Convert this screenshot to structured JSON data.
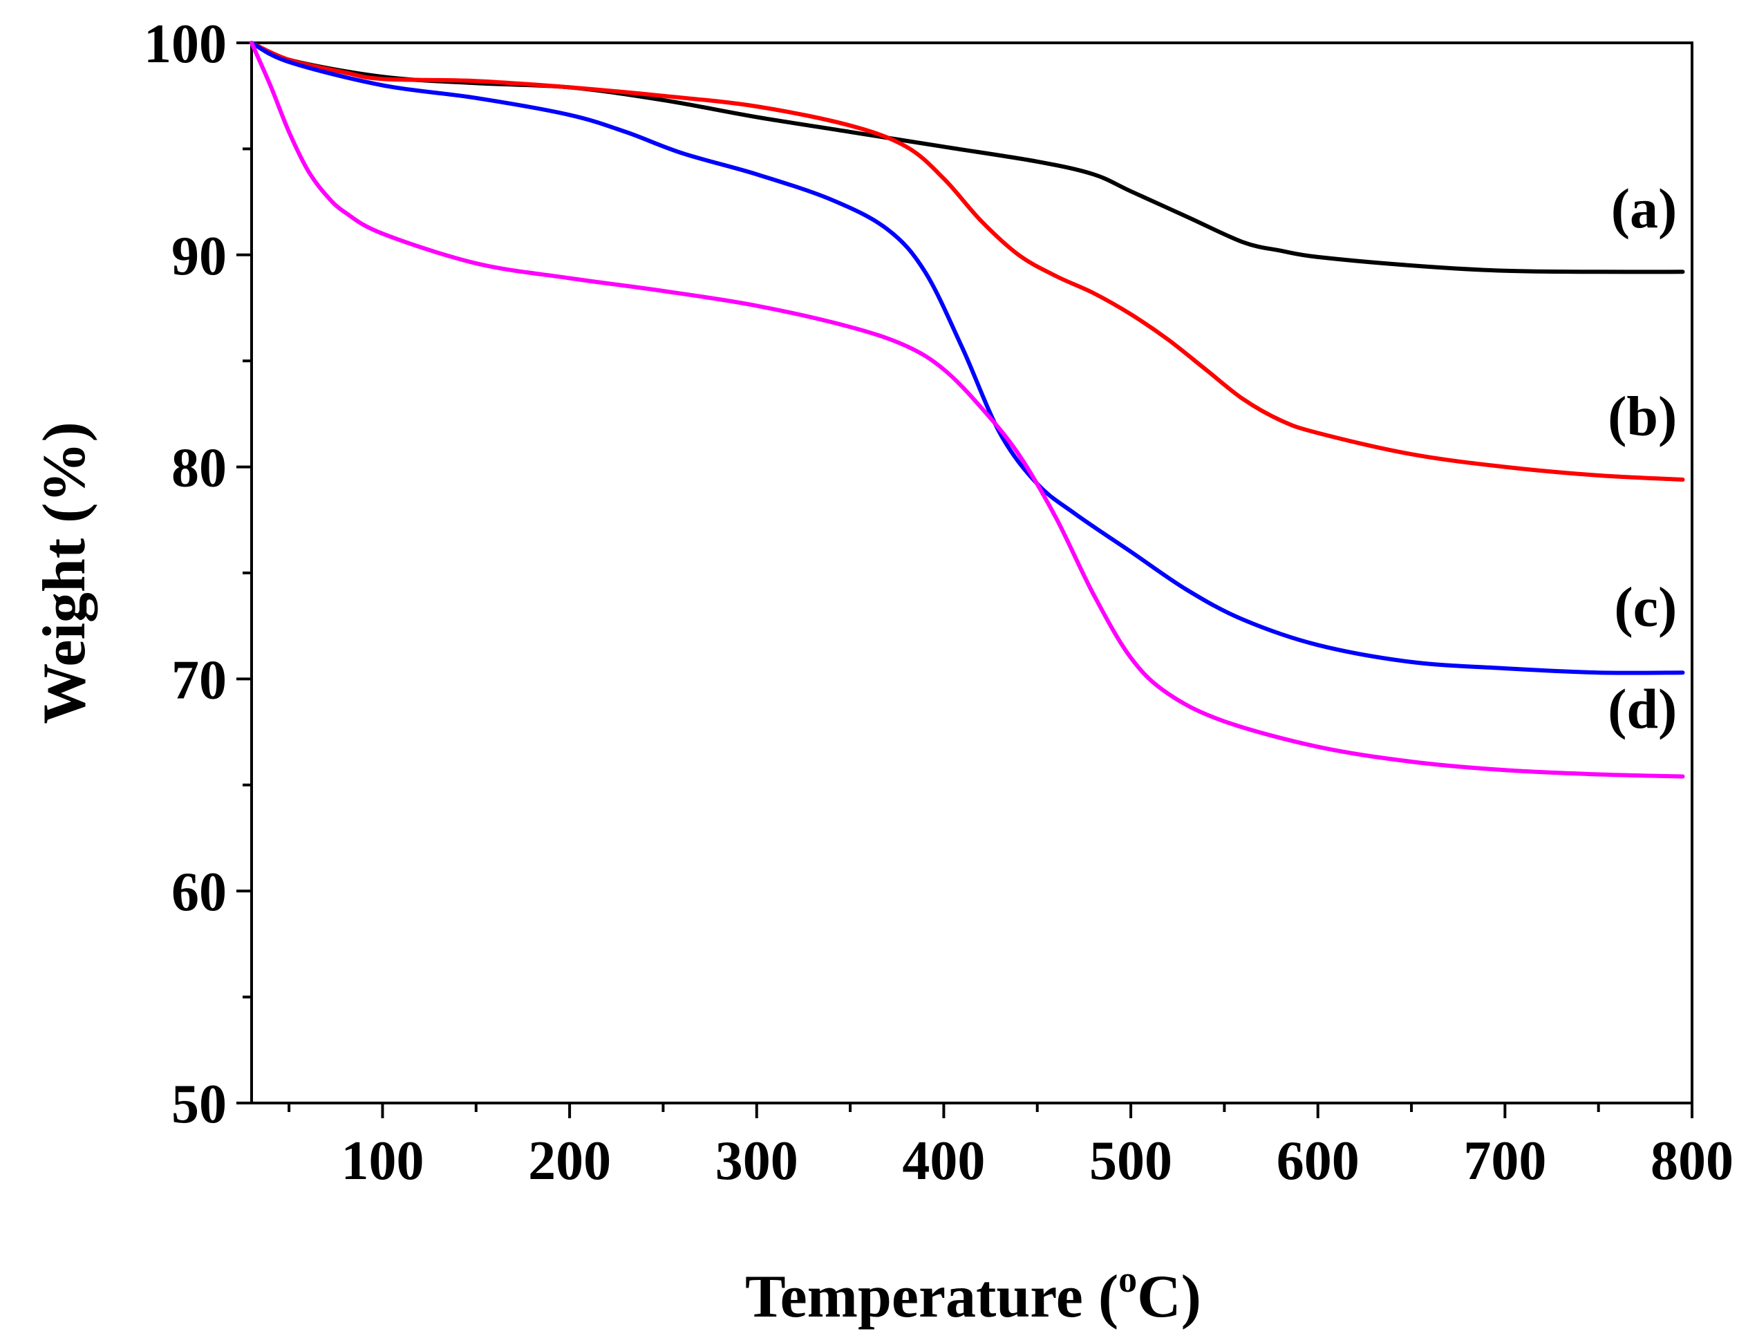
{
  "chart_data": {
    "type": "line",
    "title": "",
    "xlabel": "Temperature (",
    "xlabel_superscript": "o",
    "xlabel_suffix": "C)",
    "ylabel": "Weight (%)",
    "xlim": [
      30,
      800
    ],
    "ylim": [
      50,
      100
    ],
    "xticks": [
      100,
      200,
      300,
      400,
      500,
      600,
      700,
      800
    ],
    "xticks_minor": [
      50,
      150,
      250,
      350,
      450,
      550,
      650,
      750
    ],
    "yticks": [
      50,
      60,
      70,
      80,
      90,
      100
    ],
    "yticks_minor": [
      55,
      65,
      75,
      85,
      95
    ],
    "grid": false,
    "legend": "inline labels at right end of curves",
    "series": [
      {
        "name": "(a)",
        "color": "#000000",
        "label_anchor": [
          792,
          91.3
        ],
        "x": [
          30,
          50,
          100,
          150,
          200,
          250,
          300,
          350,
          400,
          450,
          480,
          500,
          530,
          560,
          580,
          600,
          650,
          700,
          750,
          795
        ],
        "y": [
          100,
          99.2,
          98.4,
          98.1,
          97.9,
          97.3,
          96.5,
          95.8,
          95.1,
          94.4,
          93.8,
          93.0,
          91.8,
          90.6,
          90.2,
          89.9,
          89.5,
          89.25,
          89.2,
          89.2
        ]
      },
      {
        "name": "(b)",
        "color": "#ff0000",
        "label_anchor": [
          792,
          81.5
        ],
        "x": [
          30,
          50,
          80,
          100,
          150,
          200,
          250,
          300,
          350,
          380,
          400,
          420,
          440,
          460,
          480,
          500,
          520,
          540,
          560,
          580,
          600,
          650,
          700,
          750,
          795
        ],
        "y": [
          100,
          99.2,
          98.6,
          98.3,
          98.2,
          97.9,
          97.5,
          97.0,
          96.1,
          95.1,
          93.6,
          91.6,
          90.0,
          89.0,
          88.2,
          87.2,
          86.0,
          84.6,
          83.2,
          82.2,
          81.6,
          80.6,
          80.0,
          79.6,
          79.4
        ]
      },
      {
        "name": "(c)",
        "color": "#0000ff",
        "label_anchor": [
          792,
          72.5
        ],
        "x": [
          30,
          50,
          100,
          150,
          200,
          230,
          260,
          300,
          340,
          370,
          390,
          410,
          430,
          450,
          470,
          500,
          530,
          560,
          600,
          650,
          700,
          750,
          795
        ],
        "y": [
          100,
          99.1,
          98.0,
          97.4,
          96.6,
          95.8,
          94.8,
          93.8,
          92.6,
          91.2,
          89.2,
          85.6,
          81.6,
          79.2,
          77.8,
          76.0,
          74.2,
          72.8,
          71.6,
          70.8,
          70.5,
          70.3,
          70.3
        ]
      },
      {
        "name": "(d)",
        "color": "#ff00ff",
        "label_anchor": [
          792,
          67.7
        ],
        "x": [
          30,
          40,
          50,
          60,
          70,
          80,
          100,
          150,
          200,
          250,
          300,
          350,
          380,
          400,
          420,
          440,
          460,
          480,
          500,
          520,
          550,
          600,
          650,
          700,
          750,
          795
        ],
        "y": [
          100,
          98.0,
          95.8,
          94.0,
          92.8,
          92.0,
          91.0,
          89.6,
          88.9,
          88.3,
          87.6,
          86.6,
          85.7,
          84.6,
          82.8,
          80.6,
          77.6,
          74.0,
          71.0,
          69.3,
          68.0,
          66.8,
          66.1,
          65.7,
          65.5,
          65.4
        ]
      }
    ]
  }
}
